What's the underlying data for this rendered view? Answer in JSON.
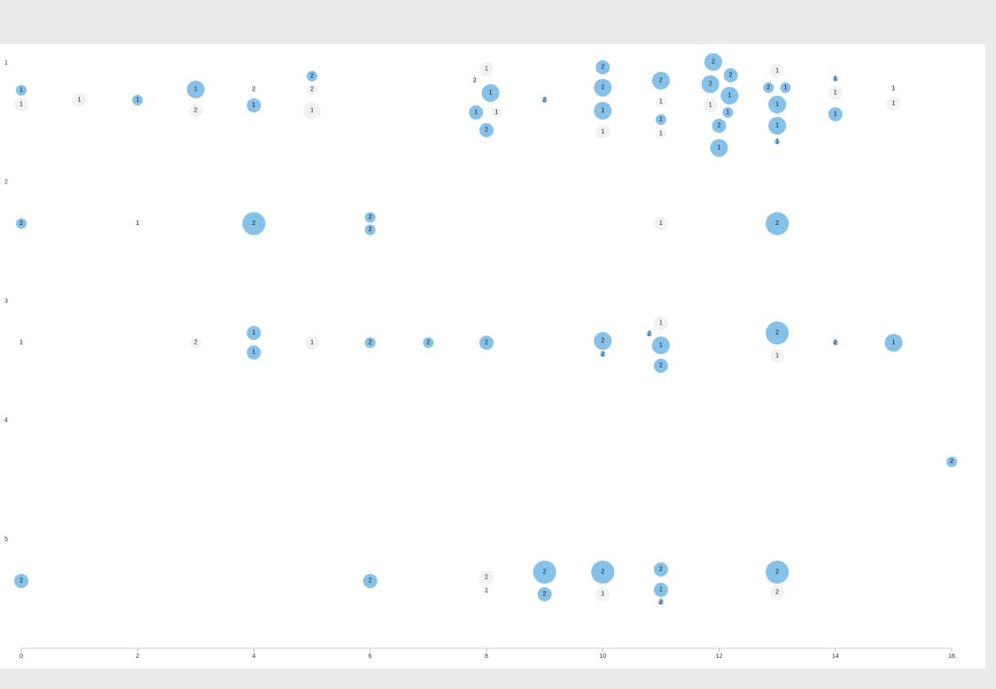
{
  "chart_data": {
    "type": "scatter",
    "title": "",
    "xlabel": "",
    "ylabel": "",
    "x_ticks": [
      "0",
      "2",
      "4",
      "6",
      "8",
      "10",
      "12",
      "14",
      "16"
    ],
    "xlim": [
      0,
      16
    ],
    "rows": [
      "1",
      "2",
      "3",
      "4",
      "5"
    ],
    "colors": {
      "blue": "#85c1e9",
      "grey": "#f2f2f2"
    },
    "bubbles": [
      {
        "row": "1",
        "x": 0,
        "label": "1",
        "color": "blue",
        "size": 1,
        "jitter": -16
      },
      {
        "row": "1",
        "x": 0,
        "label": "1",
        "color": "grey",
        "size": 2,
        "jitter": 0
      },
      {
        "row": "1",
        "x": 1,
        "label": "1",
        "color": "grey",
        "size": 2,
        "jitter": -5
      },
      {
        "row": "1",
        "x": 2,
        "label": "1",
        "color": "blue",
        "size": 1,
        "jitter": -5
      },
      {
        "row": "1",
        "x": 3,
        "label": "1",
        "color": "blue",
        "size": 3,
        "jitter": -17
      },
      {
        "row": "1",
        "x": 3,
        "label": "2",
        "color": "grey",
        "size": 2,
        "jitter": 7
      },
      {
        "row": "1",
        "x": 4,
        "label": "2",
        "color": "grey",
        "size": 0,
        "jitter": -17
      },
      {
        "row": "1",
        "x": 4,
        "label": "1",
        "color": "blue",
        "size": 2,
        "jitter": 1
      },
      {
        "row": "1",
        "x": 5,
        "label": "2",
        "color": "blue",
        "size": 1,
        "jitter": -32
      },
      {
        "row": "1",
        "x": 5,
        "label": "2",
        "color": "grey",
        "size": 1,
        "jitter": -17
      },
      {
        "row": "1",
        "x": 5,
        "label": "1",
        "color": "grey",
        "size": 3,
        "jitter": 7
      },
      {
        "row": "1",
        "x": 8,
        "label": "1",
        "color": "grey",
        "size": 2,
        "jitter": -40
      },
      {
        "row": "1",
        "x": 7.8,
        "label": "2",
        "color": "grey",
        "size": 0,
        "jitter": -27
      },
      {
        "row": "1",
        "x": 8.07,
        "label": "1",
        "color": "blue",
        "size": 3,
        "jitter": -13
      },
      {
        "row": "1",
        "x": 7.82,
        "label": "1",
        "color": "blue",
        "size": 2,
        "jitter": 9
      },
      {
        "row": "1",
        "x": 8.17,
        "label": "1",
        "color": "grey",
        "size": 1,
        "jitter": 9
      },
      {
        "row": "1",
        "x": 8,
        "label": "2",
        "color": "blue",
        "size": 2,
        "jitter": 29
      },
      {
        "row": "1",
        "x": 9,
        "label": "2",
        "color": "blue",
        "size": 0,
        "jitter": -5
      },
      {
        "row": "1",
        "x": 10,
        "label": "2",
        "color": "blue",
        "size": 2,
        "jitter": -42
      },
      {
        "row": "1",
        "x": 10,
        "label": "2",
        "color": "blue",
        "size": 3,
        "jitter": -19
      },
      {
        "row": "1",
        "x": 10,
        "label": "1",
        "color": "blue",
        "size": 3,
        "jitter": 7
      },
      {
        "row": "1",
        "x": 10,
        "label": "1",
        "color": "grey",
        "size": 2,
        "jitter": 31
      },
      {
        "row": "1",
        "x": 11,
        "label": "2",
        "color": "blue",
        "size": 3,
        "jitter": -27
      },
      {
        "row": "1",
        "x": 11,
        "label": "1",
        "color": "grey",
        "size": 1,
        "jitter": -3
      },
      {
        "row": "1",
        "x": 11,
        "label": "1",
        "color": "blue",
        "size": 1,
        "jitter": 17
      },
      {
        "row": "1",
        "x": 11,
        "label": "1",
        "color": "grey",
        "size": 1,
        "jitter": 33
      },
      {
        "row": "1",
        "x": 11.9,
        "label": "2",
        "color": "blue",
        "size": 3,
        "jitter": -48
      },
      {
        "row": "1",
        "x": 12.2,
        "label": "2",
        "color": "blue",
        "size": 2,
        "jitter": -33
      },
      {
        "row": "1",
        "x": 11.85,
        "label": "2",
        "color": "blue",
        "size": 3,
        "jitter": -23
      },
      {
        "row": "1",
        "x": 12.18,
        "label": "1",
        "color": "blue",
        "size": 3,
        "jitter": -10
      },
      {
        "row": "1",
        "x": 11.85,
        "label": "1",
        "color": "grey",
        "size": 2,
        "jitter": 1
      },
      {
        "row": "1",
        "x": 12.15,
        "label": "1",
        "color": "blue",
        "size": 1,
        "jitter": 9
      },
      {
        "row": "1",
        "x": 12,
        "label": "2",
        "color": "blue",
        "size": 2,
        "jitter": 24
      },
      {
        "row": "1",
        "x": 12,
        "label": "1",
        "color": "blue",
        "size": 3,
        "jitter": 49
      },
      {
        "row": "1",
        "x": 13,
        "label": "1",
        "color": "grey",
        "size": 2,
        "jitter": -38
      },
      {
        "row": "1",
        "x": 12.85,
        "label": "2",
        "color": "blue",
        "size": 1,
        "jitter": -19
      },
      {
        "row": "1",
        "x": 13.14,
        "label": "1",
        "color": "blue",
        "size": 1,
        "jitter": -19
      },
      {
        "row": "1",
        "x": 13,
        "label": "1",
        "color": "blue",
        "size": 3,
        "jitter": 0
      },
      {
        "row": "1",
        "x": 13,
        "label": "1",
        "color": "blue",
        "size": 3,
        "jitter": 24
      },
      {
        "row": "1",
        "x": 13,
        "label": "1",
        "color": "blue",
        "size": 0,
        "jitter": 42
      },
      {
        "row": "1",
        "x": 14,
        "label": "1",
        "color": "blue",
        "size": 0,
        "jitter": -29
      },
      {
        "row": "1",
        "x": 14,
        "label": "1",
        "color": "grey",
        "size": 2,
        "jitter": -13
      },
      {
        "row": "1",
        "x": 14,
        "label": "1",
        "color": "blue",
        "size": 2,
        "jitter": 11
      },
      {
        "row": "1",
        "x": 15,
        "label": "1",
        "color": "grey",
        "size": 0,
        "jitter": -18
      },
      {
        "row": "1",
        "x": 15,
        "label": "1",
        "color": "grey",
        "size": 2,
        "jitter": -1
      },
      {
        "row": "2",
        "x": 0,
        "label": "2",
        "color": "blue",
        "size": 1,
        "jitter": 0
      },
      {
        "row": "2",
        "x": 2,
        "label": "1",
        "color": "grey",
        "size": 0,
        "jitter": 0
      },
      {
        "row": "2",
        "x": 4,
        "label": "2",
        "color": "blue",
        "size": 4,
        "jitter": 0
      },
      {
        "row": "2",
        "x": 6,
        "label": "2",
        "color": "blue",
        "size": 1,
        "jitter": -7
      },
      {
        "row": "2",
        "x": 6,
        "label": "2",
        "color": "blue",
        "size": 1,
        "jitter": 7
      },
      {
        "row": "2",
        "x": 11,
        "label": "1",
        "color": "grey",
        "size": 2,
        "jitter": 0
      },
      {
        "row": "2",
        "x": 13,
        "label": "2",
        "color": "blue",
        "size": 4,
        "jitter": 0
      },
      {
        "row": "3",
        "x": 0,
        "label": "1",
        "color": "grey",
        "size": 0,
        "jitter": 0
      },
      {
        "row": "3",
        "x": 3,
        "label": "2",
        "color": "grey",
        "size": 1,
        "jitter": 0
      },
      {
        "row": "3",
        "x": 4,
        "label": "1",
        "color": "blue",
        "size": 2,
        "jitter": -11
      },
      {
        "row": "3",
        "x": 4,
        "label": "1",
        "color": "blue",
        "size": 2,
        "jitter": 11
      },
      {
        "row": "3",
        "x": 5,
        "label": "1",
        "color": "grey",
        "size": 2,
        "jitter": 0
      },
      {
        "row": "3",
        "x": 6,
        "label": "2",
        "color": "blue",
        "size": 1,
        "jitter": 0
      },
      {
        "row": "3",
        "x": 7,
        "label": "2",
        "color": "blue",
        "size": 1,
        "jitter": 0
      },
      {
        "row": "3",
        "x": 8,
        "label": "2",
        "color": "blue",
        "size": 2,
        "jitter": 0
      },
      {
        "row": "3",
        "x": 10,
        "label": "2",
        "color": "blue",
        "size": 3,
        "jitter": -2
      },
      {
        "row": "3",
        "x": 10,
        "label": "2",
        "color": "blue",
        "size": 0,
        "jitter": 13
      },
      {
        "row": "3",
        "x": 11,
        "label": "1",
        "color": "grey",
        "size": 2,
        "jitter": -22
      },
      {
        "row": "3",
        "x": 10.8,
        "label": "2",
        "color": "blue",
        "size": 0,
        "jitter": -10
      },
      {
        "row": "3",
        "x": 11,
        "label": "1",
        "color": "blue",
        "size": 3,
        "jitter": 3
      },
      {
        "row": "3",
        "x": 11,
        "label": "2",
        "color": "blue",
        "size": 2,
        "jitter": 26
      },
      {
        "row": "3",
        "x": 13,
        "label": "2",
        "color": "blue",
        "size": 4,
        "jitter": -11
      },
      {
        "row": "3",
        "x": 13,
        "label": "1",
        "color": "grey",
        "size": 2,
        "jitter": 15
      },
      {
        "row": "3",
        "x": 14,
        "label": "2",
        "color": "blue",
        "size": 0,
        "jitter": 0
      },
      {
        "row": "3",
        "x": 15,
        "label": "1",
        "color": "blue",
        "size": 3,
        "jitter": 0
      },
      {
        "row": "4",
        "x": 16,
        "label": "2",
        "color": "blue",
        "size": 1,
        "jitter": 0
      },
      {
        "row": "5",
        "x": 0,
        "label": "2",
        "color": "blue",
        "size": 2,
        "jitter": 0
      },
      {
        "row": "5",
        "x": 6,
        "label": "2",
        "color": "blue",
        "size": 2,
        "jitter": 0
      },
      {
        "row": "5",
        "x": 8,
        "label": "2",
        "color": "grey",
        "size": 2,
        "jitter": -4
      },
      {
        "row": "5",
        "x": 8,
        "label": "1",
        "color": "grey",
        "size": 0,
        "jitter": 11
      },
      {
        "row": "5",
        "x": 9,
        "label": "2",
        "color": "blue",
        "size": 4,
        "jitter": -10
      },
      {
        "row": "5",
        "x": 9,
        "label": "2",
        "color": "blue",
        "size": 2,
        "jitter": 15
      },
      {
        "row": "5",
        "x": 10,
        "label": "2",
        "color": "blue",
        "size": 4,
        "jitter": -10
      },
      {
        "row": "5",
        "x": 10,
        "label": "1",
        "color": "grey",
        "size": 2,
        "jitter": 15
      },
      {
        "row": "5",
        "x": 11,
        "label": "2",
        "color": "blue",
        "size": 2,
        "jitter": -13
      },
      {
        "row": "5",
        "x": 11,
        "label": "1",
        "color": "blue",
        "size": 2,
        "jitter": 10
      },
      {
        "row": "5",
        "x": 11,
        "label": "2",
        "color": "blue",
        "size": 0,
        "jitter": 24
      },
      {
        "row": "5",
        "x": 13,
        "label": "2",
        "color": "blue",
        "size": 4,
        "jitter": -10
      },
      {
        "row": "5",
        "x": 13,
        "label": "2",
        "color": "grey",
        "size": 2,
        "jitter": 13
      }
    ]
  }
}
